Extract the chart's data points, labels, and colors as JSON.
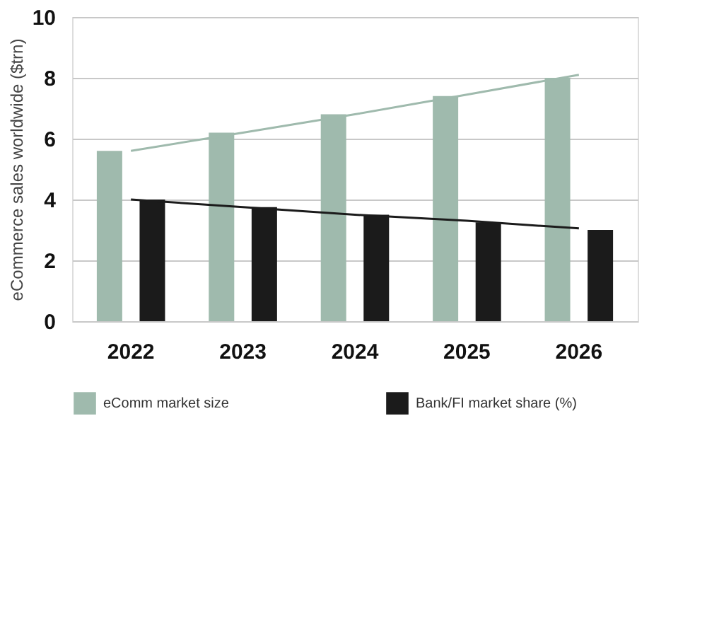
{
  "chart_data": {
    "type": "bar",
    "ylabel": "eCommerce sales worldwide ($trn)",
    "categories": [
      "2022",
      "2023",
      "2024",
      "2025",
      "2026"
    ],
    "series": [
      {
        "name": "eComm market size",
        "color": "#9fbaad",
        "values": [
          5.6,
          6.2,
          6.8,
          7.4,
          8.0
        ]
      },
      {
        "name": "Bank/FI market share (%)",
        "color": "#1b1b1b",
        "values": [
          4.0,
          3.75,
          3.5,
          3.25,
          3.0
        ]
      },
      {
        "type": "line",
        "color": "#9fbaad",
        "values": [
          5.6,
          6.2,
          6.8,
          7.45,
          8.1
        ]
      },
      {
        "type": "line",
        "color": "#1b1b1b",
        "values": [
          4.0,
          3.75,
          3.5,
          3.3,
          3.05
        ]
      }
    ],
    "ylim": [
      0,
      10
    ],
    "yticks": [
      0,
      2,
      4,
      6,
      8,
      10
    ],
    "grid": "y",
    "legend": "bottom"
  }
}
